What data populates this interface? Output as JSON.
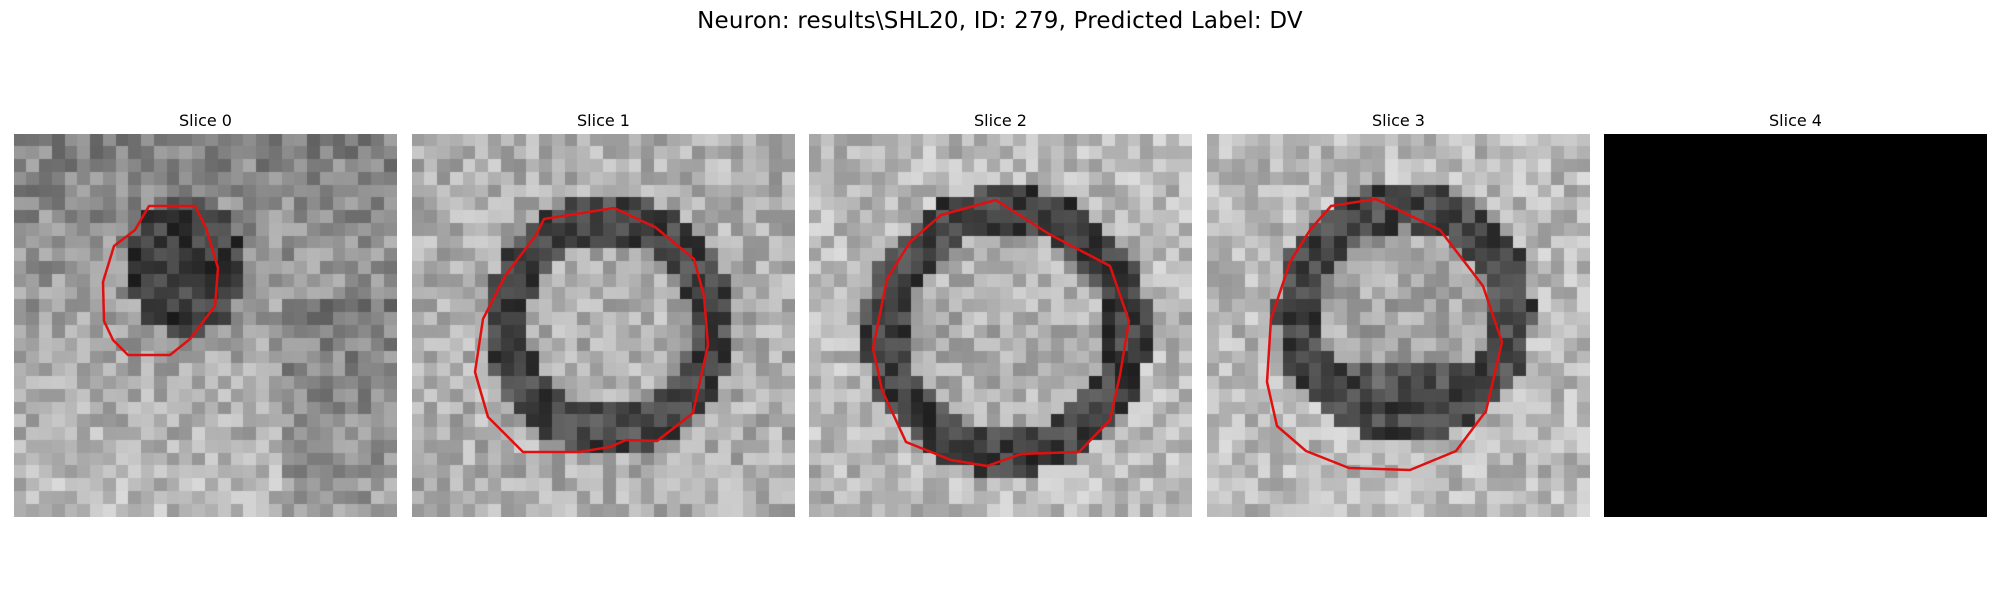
{
  "figure": {
    "title": "Neuron: results\\SHL20, ID: 279, Predicted Label: DV"
  },
  "panels": [
    {
      "title": "Slice 0"
    },
    {
      "title": "Slice 1"
    },
    {
      "title": "Slice 2"
    },
    {
      "title": "Slice 3"
    },
    {
      "title": "Slice 4"
    }
  ],
  "colors": {
    "contour": "#e01010",
    "background": "#ffffff"
  }
}
